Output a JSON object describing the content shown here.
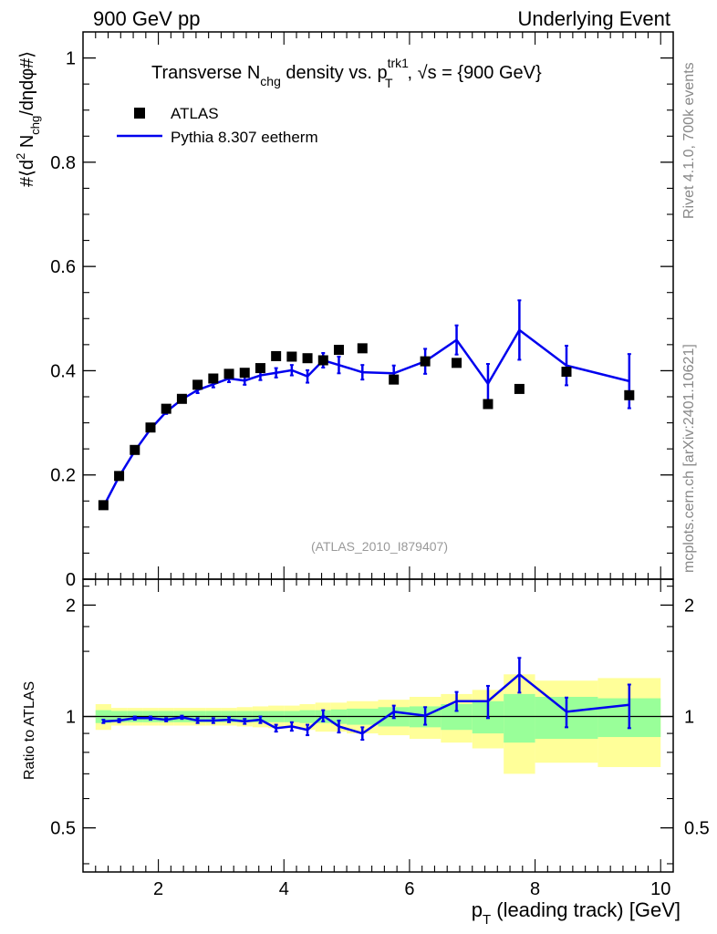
{
  "header": {
    "left": "900 GeV pp",
    "right": "Underlying Event"
  },
  "side_labels": {
    "rivet": "Rivet 4.1.0,  700k events",
    "mcplots": "mcplots.cern.ch [arXiv:2401.10621]"
  },
  "main_plot": {
    "title_parts": {
      "a": "Transverse N",
      "a_sub": "chg",
      "b": " density vs. p",
      "b_sup": "trk1",
      "b_sub": "T",
      "c": ", √s = {900 GeV}"
    },
    "ylabel_parts": {
      "a": "#⟨d",
      "a_sup": "2",
      "b": " N",
      "b_sub": "chg",
      "c": "/dηdφ#⟩"
    },
    "analysis_id": "(ATLAS_2010_I879407)",
    "y_tick_labels": [
      "0",
      "0.2",
      "0.4",
      "0.6",
      "0.8",
      "1"
    ]
  },
  "ratio_plot": {
    "ylabel": "Ratio to ATLAS",
    "y_tick_labels": [
      "0.5",
      "1",
      "2"
    ]
  },
  "x_axis": {
    "label_parts": {
      "a": "p",
      "a_sub": "T",
      "b": " (leading track) [GeV]"
    },
    "tick_labels": [
      "2",
      "4",
      "6",
      "8",
      "10"
    ]
  },
  "legend": {
    "data_label": "ATLAS",
    "mc_label": "Pythia 8.307 eetherm"
  },
  "colors": {
    "data": "#000000",
    "mc": "#0000ee",
    "band_inner": "#99ff99",
    "band_outer": "#ffff99",
    "axis": "#000000",
    "side_text": "#888888"
  },
  "chart_data": {
    "type": "scatter",
    "x_range": [
      0.8,
      10.2
    ],
    "main_y_range": [
      0,
      1.05
    ],
    "ratio_y_range": [
      0.38,
      2.35
    ],
    "ratio_y_scale": "log",
    "series": [
      {
        "name": "ATLAS",
        "kind": "markers",
        "x": [
          1.125,
          1.375,
          1.625,
          1.875,
          2.125,
          2.375,
          2.625,
          2.875,
          3.125,
          3.375,
          3.625,
          3.875,
          4.125,
          4.375,
          4.625,
          4.875,
          5.25,
          5.75,
          6.25,
          6.75,
          7.25,
          7.75,
          8.5,
          9.5
        ],
        "y": [
          0.142,
          0.198,
          0.248,
          0.291,
          0.327,
          0.346,
          0.373,
          0.385,
          0.394,
          0.396,
          0.405,
          0.428,
          0.427,
          0.424,
          0.42,
          0.44,
          0.443,
          0.383,
          0.418,
          0.415,
          0.336,
          0.365,
          0.398,
          0.353
        ]
      },
      {
        "name": "Pythia 8.307 eetherm",
        "kind": "line",
        "x": [
          1.125,
          1.375,
          1.625,
          1.875,
          2.125,
          2.375,
          2.625,
          2.875,
          3.125,
          3.375,
          3.625,
          3.875,
          4.125,
          4.375,
          4.625,
          4.875,
          5.25,
          5.75,
          6.25,
          6.75,
          7.25,
          7.75,
          8.5,
          9.5
        ],
        "y": [
          0.139,
          0.197,
          0.246,
          0.288,
          0.321,
          0.345,
          0.363,
          0.374,
          0.385,
          0.381,
          0.391,
          0.396,
          0.401,
          0.389,
          0.42,
          0.411,
          0.397,
          0.395,
          0.418,
          0.459,
          0.375,
          0.478,
          0.41,
          0.38
        ],
        "yerr": [
          0.003,
          0.003,
          0.003,
          0.004,
          0.004,
          0.005,
          0.006,
          0.006,
          0.007,
          0.008,
          0.009,
          0.009,
          0.01,
          0.012,
          0.014,
          0.016,
          0.014,
          0.015,
          0.024,
          0.028,
          0.038,
          0.057,
          0.038,
          0.052
        ]
      }
    ],
    "ratio": {
      "x": [
        1.125,
        1.375,
        1.625,
        1.875,
        2.125,
        2.375,
        2.625,
        2.875,
        3.125,
        3.375,
        3.625,
        3.875,
        4.125,
        4.375,
        4.625,
        4.875,
        5.25,
        5.75,
        6.25,
        6.75,
        7.25,
        7.75,
        8.5,
        9.5
      ],
      "y": [
        0.97,
        0.975,
        0.99,
        0.99,
        0.98,
        0.995,
        0.975,
        0.975,
        0.98,
        0.97,
        0.98,
        0.93,
        0.94,
        0.92,
        1.005,
        0.94,
        0.9,
        1.03,
        1.005,
        1.1,
        1.1,
        1.3,
        1.03,
        1.075
      ],
      "yerr": [
        0.01,
        0.01,
        0.01,
        0.01,
        0.01,
        0.01,
        0.015,
        0.015,
        0.015,
        0.015,
        0.02,
        0.02,
        0.025,
        0.03,
        0.035,
        0.035,
        0.035,
        0.04,
        0.055,
        0.065,
        0.11,
        0.14,
        0.095,
        0.145
      ],
      "bins": [
        1.0,
        1.25,
        1.5,
        1.75,
        2.0,
        2.25,
        2.5,
        2.75,
        3.0,
        3.25,
        3.5,
        3.75,
        4.0,
        4.25,
        4.5,
        4.75,
        5.0,
        5.5,
        6.0,
        6.5,
        7.0,
        7.5,
        8.0,
        9.0,
        10.0
      ],
      "band_inner": [
        0.04,
        0.035,
        0.035,
        0.035,
        0.035,
        0.035,
        0.035,
        0.035,
        0.035,
        0.035,
        0.035,
        0.035,
        0.035,
        0.04,
        0.04,
        0.045,
        0.05,
        0.06,
        0.065,
        0.08,
        0.1,
        0.15,
        0.13,
        0.12
      ],
      "band_outer": [
        0.08,
        0.055,
        0.055,
        0.055,
        0.055,
        0.055,
        0.055,
        0.055,
        0.055,
        0.06,
        0.065,
        0.07,
        0.07,
        0.08,
        0.09,
        0.09,
        0.1,
        0.11,
        0.13,
        0.15,
        0.18,
        0.3,
        0.25,
        0.27
      ]
    },
    "ratio_reference_line": 1
  }
}
